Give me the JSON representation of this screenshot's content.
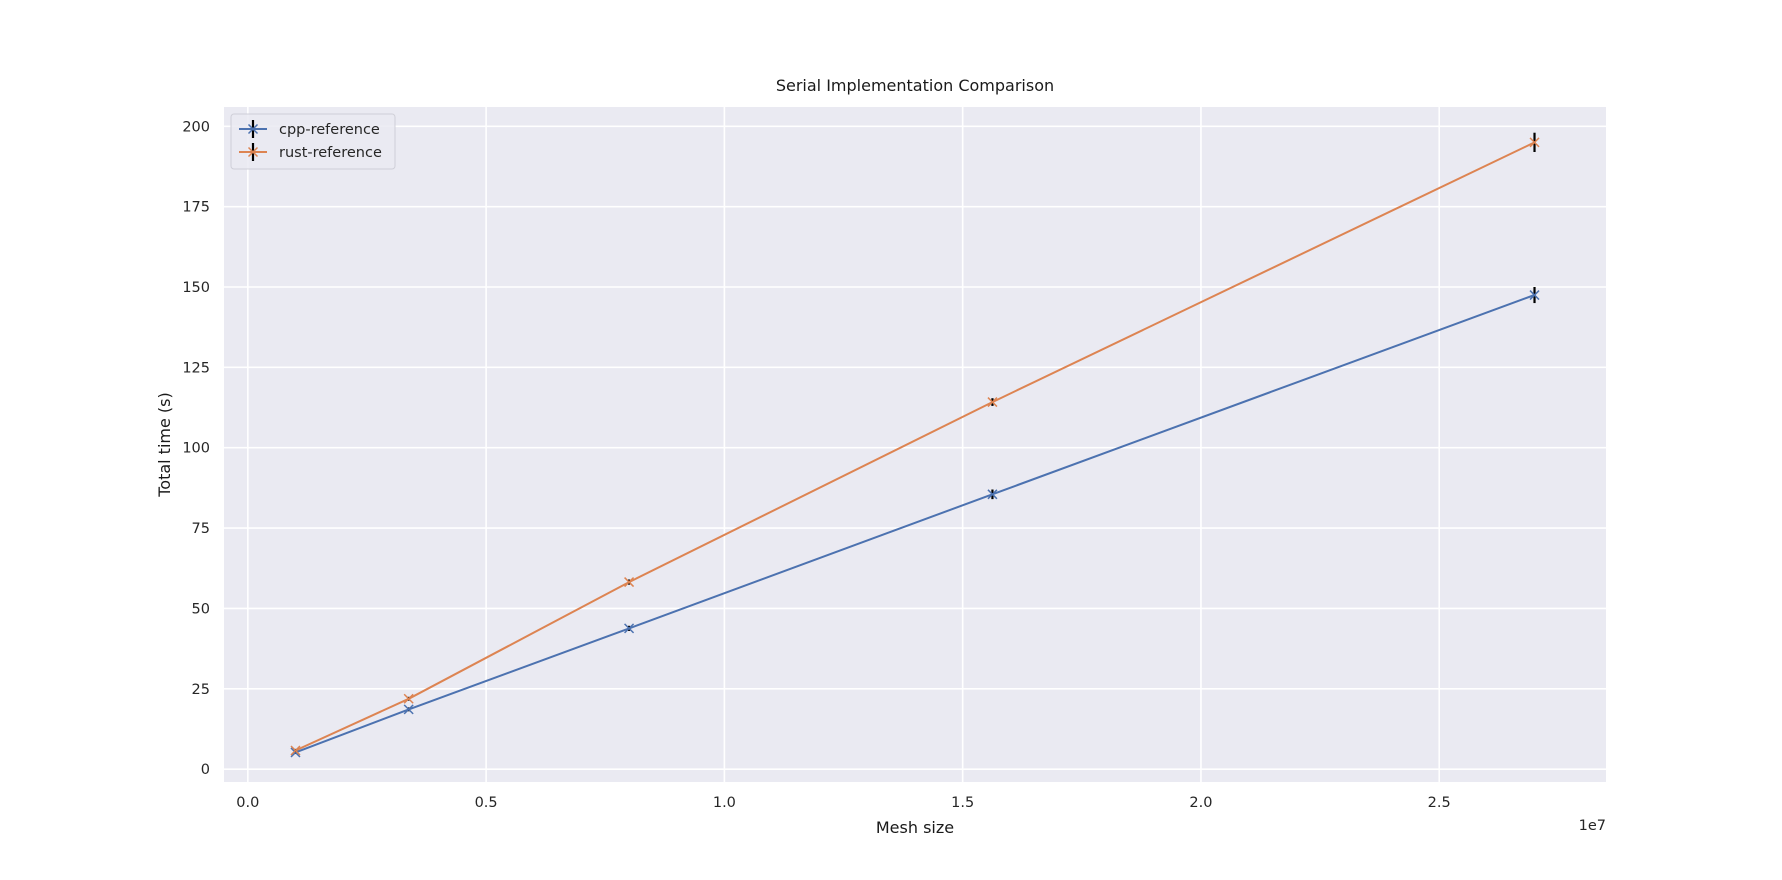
{
  "chart_data": {
    "type": "line",
    "title": "Serial Implementation Comparison",
    "xlabel": "Mesh size",
    "ylabel": "Total time (s)",
    "x_offset_label": "1e7",
    "x_scale_factor": 10000000,
    "xlim": [
      -0.05,
      2.85
    ],
    "ylim": [
      -4,
      206
    ],
    "x_ticks": [
      0.0,
      0.5,
      1.0,
      1.5,
      2.0,
      2.5
    ],
    "x_tick_labels": [
      "0.0",
      "0.5",
      "1.0",
      "1.5",
      "2.0",
      "2.5"
    ],
    "y_ticks": [
      0,
      25,
      50,
      75,
      100,
      125,
      150,
      175,
      200
    ],
    "y_tick_labels": [
      "0",
      "25",
      "50",
      "75",
      "100",
      "125",
      "150",
      "175",
      "200"
    ],
    "grid": true,
    "legend_position": "top-left",
    "x": [
      1000000,
      3375000,
      8000000,
      15625000,
      27000000
    ],
    "series": [
      {
        "name": "cpp-reference",
        "color": "#4c72b0",
        "marker": "x",
        "values": [
          5.2,
          18.6,
          43.8,
          85.5,
          147.5
        ],
        "errors": [
          0.5,
          0.6,
          0.8,
          1.5,
          2.5
        ]
      },
      {
        "name": "rust-reference",
        "color": "#dd8452",
        "marker": "x",
        "values": [
          5.8,
          21.9,
          58.2,
          114.2,
          195.0
        ],
        "errors": [
          0.5,
          0.6,
          0.8,
          1.2,
          3.0
        ]
      }
    ],
    "error_bar_color": "#000000",
    "plot_background": "#eaeaf2",
    "grid_color": "#ffffff"
  }
}
